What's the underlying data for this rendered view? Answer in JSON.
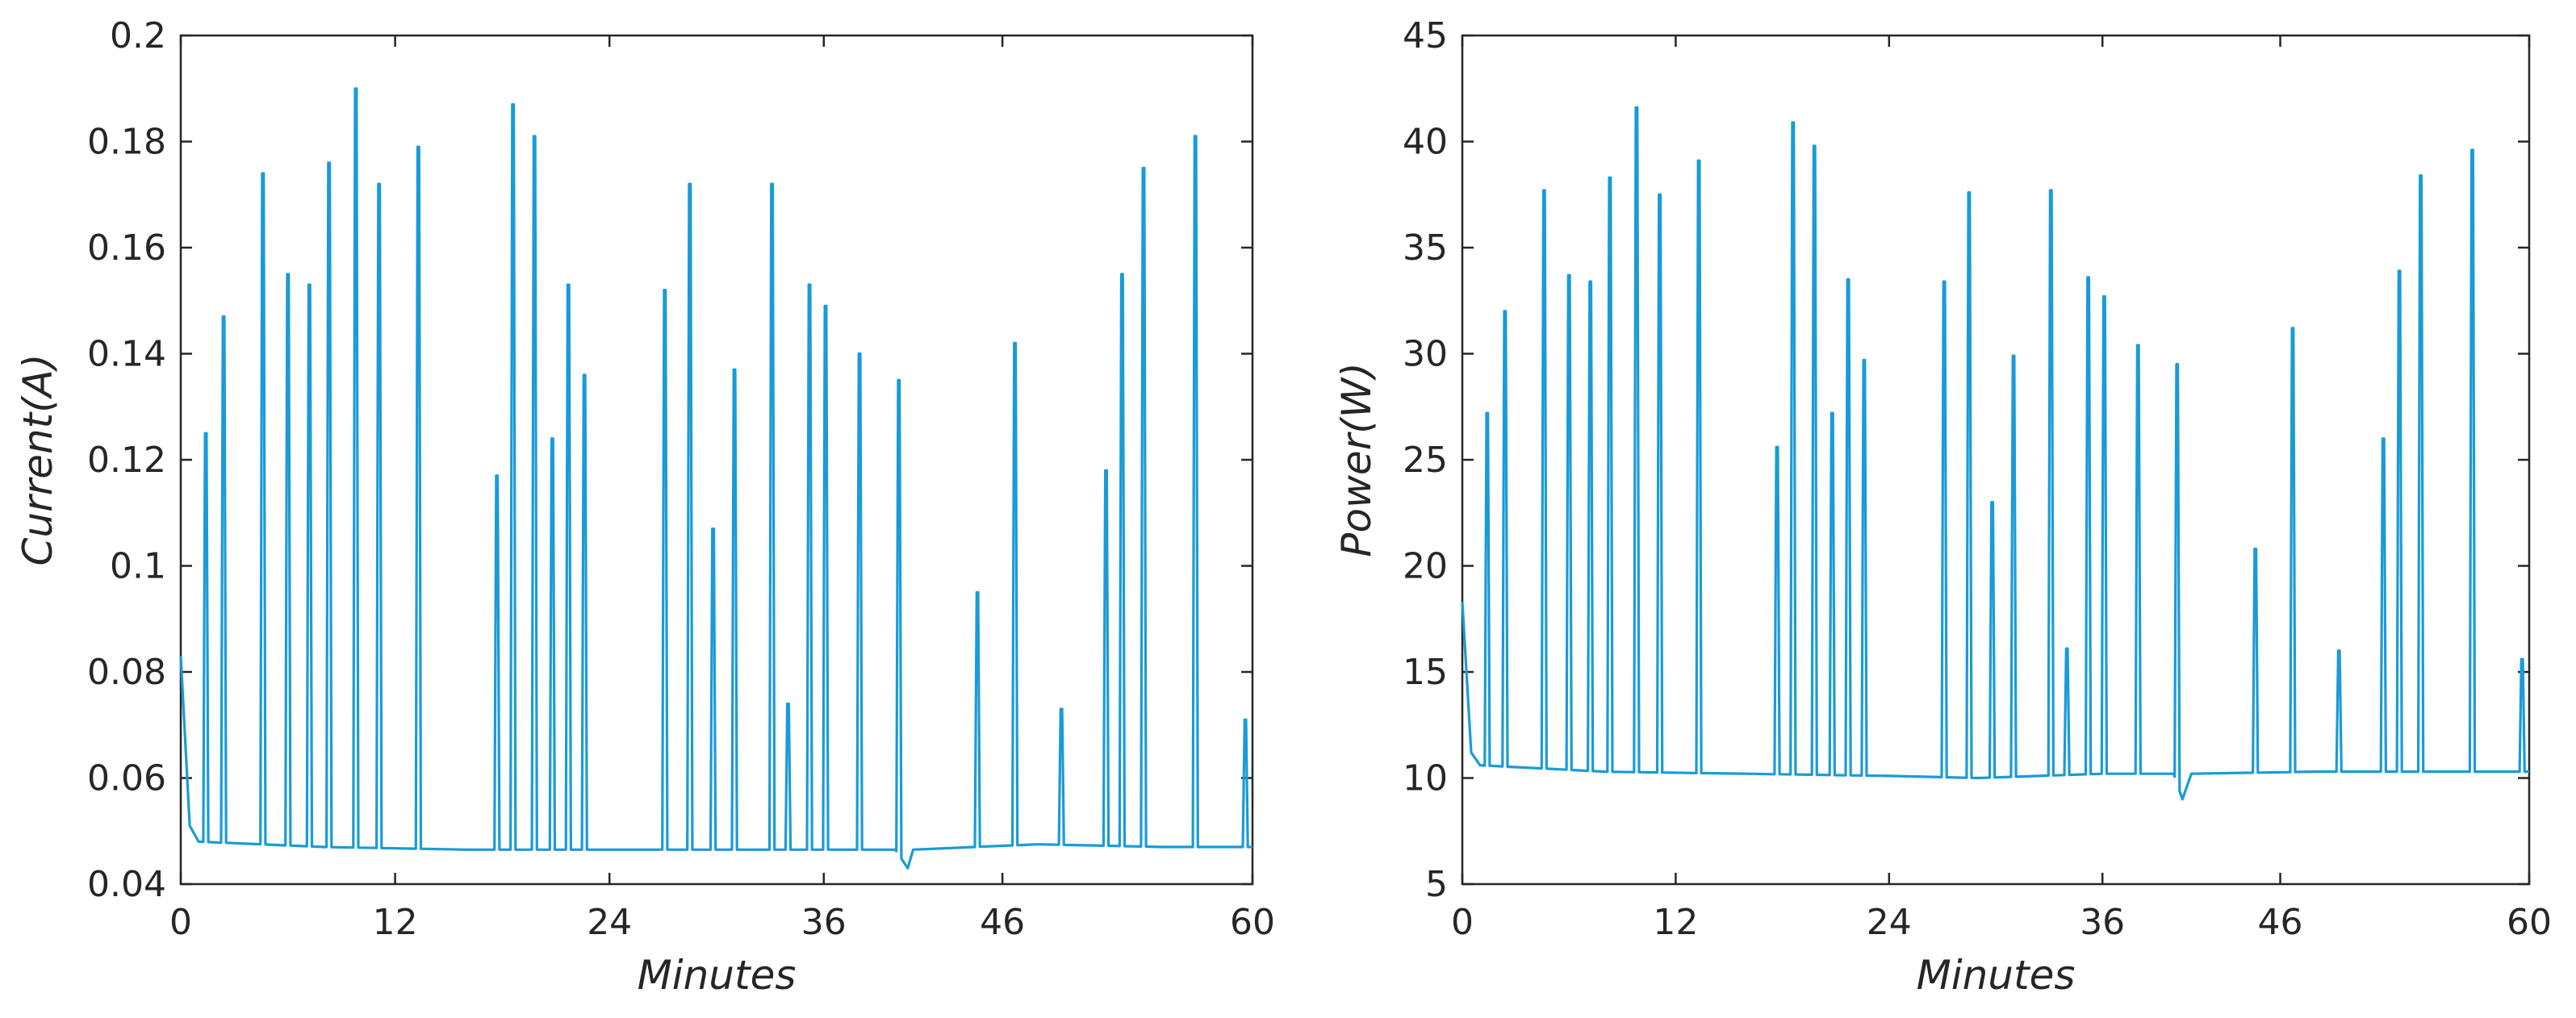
{
  "chart_data": [
    {
      "type": "line",
      "xlabel": "Minutes",
      "ylabel": "Current(A)",
      "xlim": [
        0,
        60
      ],
      "ylim": [
        0.04,
        0.2
      ],
      "xtick_labels": [
        "0",
        "12",
        "24",
        "36",
        "46",
        "60"
      ],
      "ytick_labels": [
        "0.04",
        "0.06",
        "0.08",
        "0.1",
        "0.12",
        "0.14",
        "0.16",
        "0.18",
        "0.2"
      ],
      "grid": false,
      "color": "#1a9bd7",
      "baseline_points": [
        [
          0,
          0.083
        ],
        [
          0.5,
          0.051
        ],
        [
          1,
          0.048
        ],
        [
          8,
          0.047
        ],
        [
          16,
          0.0465
        ],
        [
          24,
          0.0465
        ],
        [
          40,
          0.0465
        ],
        [
          40.7,
          0.043
        ],
        [
          41,
          0.0465
        ],
        [
          48,
          0.0475
        ],
        [
          55,
          0.047
        ],
        [
          60,
          0.047
        ]
      ],
      "spikes": [
        [
          1.4,
          0.125
        ],
        [
          2.4,
          0.147
        ],
        [
          4.6,
          0.174
        ],
        [
          6.0,
          0.155
        ],
        [
          7.2,
          0.153
        ],
        [
          8.3,
          0.176
        ],
        [
          9.8,
          0.19
        ],
        [
          11.1,
          0.172
        ],
        [
          13.3,
          0.179
        ],
        [
          17.7,
          0.117
        ],
        [
          18.6,
          0.187
        ],
        [
          19.8,
          0.181
        ],
        [
          20.8,
          0.124
        ],
        [
          21.7,
          0.153
        ],
        [
          22.6,
          0.136
        ],
        [
          27.1,
          0.152
        ],
        [
          28.5,
          0.172
        ],
        [
          29.8,
          0.107
        ],
        [
          31.0,
          0.137
        ],
        [
          33.1,
          0.172
        ],
        [
          34.0,
          0.074
        ],
        [
          35.2,
          0.153
        ],
        [
          36.1,
          0.149
        ],
        [
          38.0,
          0.14
        ],
        [
          40.2,
          0.135
        ],
        [
          44.6,
          0.095
        ],
        [
          46.7,
          0.142
        ],
        [
          49.3,
          0.073
        ],
        [
          51.8,
          0.118
        ],
        [
          52.7,
          0.155
        ],
        [
          53.9,
          0.175
        ],
        [
          56.8,
          0.181
        ],
        [
          59.6,
          0.071
        ]
      ]
    },
    {
      "type": "line",
      "xlabel": "Minutes",
      "ylabel": "Power(W)",
      "xlim": [
        0,
        60
      ],
      "ylim": [
        5,
        45
      ],
      "xtick_labels": [
        "0",
        "12",
        "24",
        "36",
        "46",
        "60"
      ],
      "ytick_labels": [
        "5",
        "10",
        "15",
        "20",
        "25",
        "30",
        "35",
        "40",
        "45"
      ],
      "grid": false,
      "color": "#1a9bd7",
      "baseline_points": [
        [
          0,
          18.3
        ],
        [
          0.5,
          11.2
        ],
        [
          1,
          10.6
        ],
        [
          8,
          10.3
        ],
        [
          16,
          10.2
        ],
        [
          24,
          10.1
        ],
        [
          29,
          10.0
        ],
        [
          36,
          10.2
        ],
        [
          40,
          10.2
        ],
        [
          40.5,
          9.0
        ],
        [
          41,
          10.2
        ],
        [
          48,
          10.3
        ],
        [
          55,
          10.3
        ],
        [
          60,
          10.3
        ]
      ],
      "spikes": [
        [
          1.4,
          27.2
        ],
        [
          2.4,
          32.0
        ],
        [
          4.6,
          37.7
        ],
        [
          6.0,
          33.7
        ],
        [
          7.2,
          33.4
        ],
        [
          8.3,
          38.3
        ],
        [
          9.8,
          41.6
        ],
        [
          11.1,
          37.5
        ],
        [
          13.3,
          39.1
        ],
        [
          17.7,
          25.6
        ],
        [
          18.6,
          40.9
        ],
        [
          19.8,
          39.8
        ],
        [
          20.8,
          27.2
        ],
        [
          21.7,
          33.5
        ],
        [
          22.6,
          29.7
        ],
        [
          27.1,
          33.4
        ],
        [
          28.5,
          37.6
        ],
        [
          29.8,
          23.0
        ],
        [
          31.0,
          29.9
        ],
        [
          33.1,
          37.7
        ],
        [
          34.0,
          16.1
        ],
        [
          35.2,
          33.6
        ],
        [
          36.1,
          32.7
        ],
        [
          38.0,
          30.4
        ],
        [
          40.2,
          29.5
        ],
        [
          44.6,
          20.8
        ],
        [
          46.7,
          31.2
        ],
        [
          49.3,
          16.0
        ],
        [
          51.8,
          26.0
        ],
        [
          52.7,
          33.9
        ],
        [
          53.9,
          38.4
        ],
        [
          56.8,
          39.6
        ],
        [
          59.6,
          15.6
        ]
      ]
    }
  ]
}
